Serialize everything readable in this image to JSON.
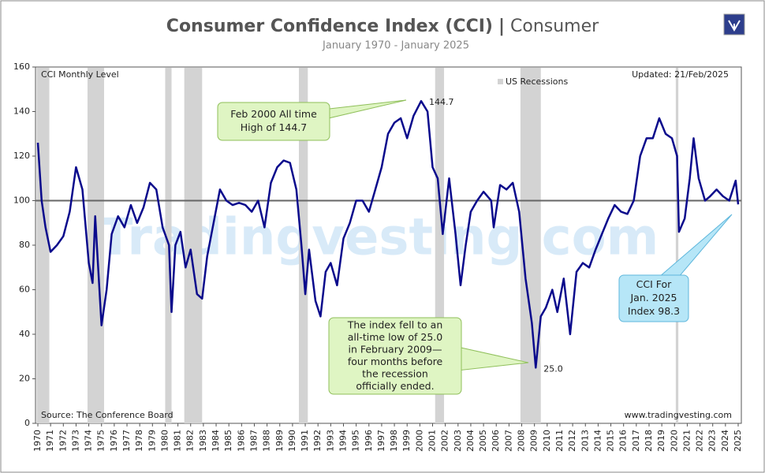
{
  "chart_data": {
    "type": "line",
    "title": "Consumer Confidence Index (CCI)",
    "title_separator": "|",
    "title_category": "Consumer",
    "subtitle": "January 1970 - January 2025",
    "series_label": "CCI Monthly Level",
    "updated": "Updated: 21/Feb/2025",
    "source": "Source: The Conference Board",
    "website": "www.tradingvesting.com",
    "watermark": "Tradingvesting.com",
    "recession_label": "US Recessions",
    "recession_color": "#d3d3d3",
    "recessions": [
      [
        1969.9,
        1970.9
      ],
      [
        1973.9,
        1975.2
      ],
      [
        1980.0,
        1980.5
      ],
      [
        1981.5,
        1982.9
      ],
      [
        1990.5,
        1991.2
      ],
      [
        2001.2,
        2001.9
      ],
      [
        2007.9,
        2009.5
      ],
      [
        2020.1,
        2020.3
      ]
    ],
    "reference_line": 100,
    "xlim": [
      1970,
      2025
    ],
    "xticks": [
      1970,
      1971,
      1972,
      1973,
      1974,
      1975,
      1976,
      1977,
      1978,
      1979,
      1980,
      1981,
      1982,
      1983,
      1984,
      1985,
      1986,
      1987,
      1988,
      1989,
      1990,
      1991,
      1992,
      1993,
      1994,
      1995,
      1996,
      1997,
      1998,
      1999,
      2000,
      2001,
      2002,
      2003,
      2004,
      2005,
      2006,
      2007,
      2008,
      2009,
      2010,
      2011,
      2012,
      2013,
      2014,
      2015,
      2016,
      2017,
      2018,
      2019,
      2020,
      2021,
      2022,
      2023,
      2024,
      2025
    ],
    "ylim": [
      0,
      160
    ],
    "yticks": [
      0,
      20,
      40,
      60,
      80,
      100,
      120,
      140,
      160
    ],
    "series": [
      {
        "name": "CCI Monthly Level",
        "color": "#0a0a8c",
        "x": [
          1970.0,
          1970.3,
          1970.6,
          1971.0,
          1971.5,
          1972.0,
          1972.5,
          1973.0,
          1973.5,
          1974.0,
          1974.3,
          1974.5,
          1975.0,
          1975.4,
          1975.8,
          1976.3,
          1976.8,
          1977.3,
          1977.8,
          1978.3,
          1978.8,
          1979.3,
          1979.8,
          1980.3,
          1980.5,
          1980.8,
          1981.2,
          1981.6,
          1982.0,
          1982.5,
          1982.9,
          1983.3,
          1983.8,
          1984.3,
          1984.8,
          1985.3,
          1985.8,
          1986.3,
          1986.8,
          1987.3,
          1987.8,
          1988.3,
          1988.8,
          1989.3,
          1989.8,
          1990.3,
          1990.7,
          1991.0,
          1991.3,
          1991.8,
          1992.2,
          1992.6,
          1993.0,
          1993.5,
          1994.0,
          1994.5,
          1995.0,
          1995.5,
          1996.0,
          1996.5,
          1997.0,
          1997.5,
          1998.0,
          1998.5,
          1999.0,
          1999.5,
          2000.1,
          2000.6,
          2001.0,
          2001.4,
          2001.8,
          2002.3,
          2002.8,
          2003.2,
          2003.6,
          2004.0,
          2004.5,
          2005.0,
          2005.6,
          2005.8,
          2006.3,
          2006.8,
          2007.3,
          2007.8,
          2008.3,
          2008.8,
          2009.1,
          2009.5,
          2009.9,
          2010.4,
          2010.8,
          2011.3,
          2011.8,
          2012.3,
          2012.8,
          2013.3,
          2013.8,
          2014.3,
          2014.8,
          2015.3,
          2015.8,
          2016.3,
          2016.8,
          2017.3,
          2017.8,
          2018.3,
          2018.8,
          2019.3,
          2019.8,
          2020.2,
          2020.35,
          2020.8,
          2021.2,
          2021.5,
          2021.9,
          2022.4,
          2022.8,
          2023.3,
          2023.8,
          2024.3,
          2024.8,
          2025.0
        ],
        "values": [
          126,
          100,
          88,
          77,
          80,
          84,
          95,
          115,
          105,
          72,
          63,
          93,
          44,
          60,
          85,
          93,
          88,
          98,
          90,
          97,
          108,
          105,
          88,
          80,
          50,
          80,
          86,
          70,
          78,
          58,
          56,
          75,
          90,
          105,
          100,
          98,
          99,
          98,
          95,
          100,
          88,
          108,
          115,
          118,
          117,
          105,
          80,
          58,
          78,
          55,
          48,
          68,
          72,
          62,
          83,
          90,
          100,
          100,
          95,
          105,
          115,
          130,
          135,
          137,
          128,
          138,
          144.7,
          140,
          115,
          110,
          85,
          110,
          85,
          62,
          80,
          95,
          100,
          104,
          100,
          88,
          107,
          105,
          108,
          95,
          65,
          45,
          25,
          48,
          52,
          60,
          50,
          65,
          40,
          68,
          72,
          70,
          78,
          85,
          92,
          98,
          95,
          94,
          100,
          120,
          128,
          128,
          137,
          130,
          128,
          120,
          86,
          92,
          110,
          128,
          110,
          100,
          102,
          105,
          102,
          100,
          109,
          98.3
        ]
      }
    ],
    "peak_label": {
      "x": 2000.1,
      "value": 144.7,
      "label": "144.7"
    },
    "trough_label": {
      "x": 2009.1,
      "value": 25,
      "label": "25.0"
    },
    "annotations": [
      {
        "lines": [
          "Feb 2000 All time",
          "High of 144.7"
        ]
      },
      {
        "lines": [
          "The index fell to an",
          "all-time low of 25.0",
          "in February 2009—",
          "four months before",
          "the recession",
          "officially ended."
        ]
      },
      {
        "lines": [
          "CCI For",
          "Jan. 2025",
          "Index 98.3"
        ]
      }
    ]
  }
}
